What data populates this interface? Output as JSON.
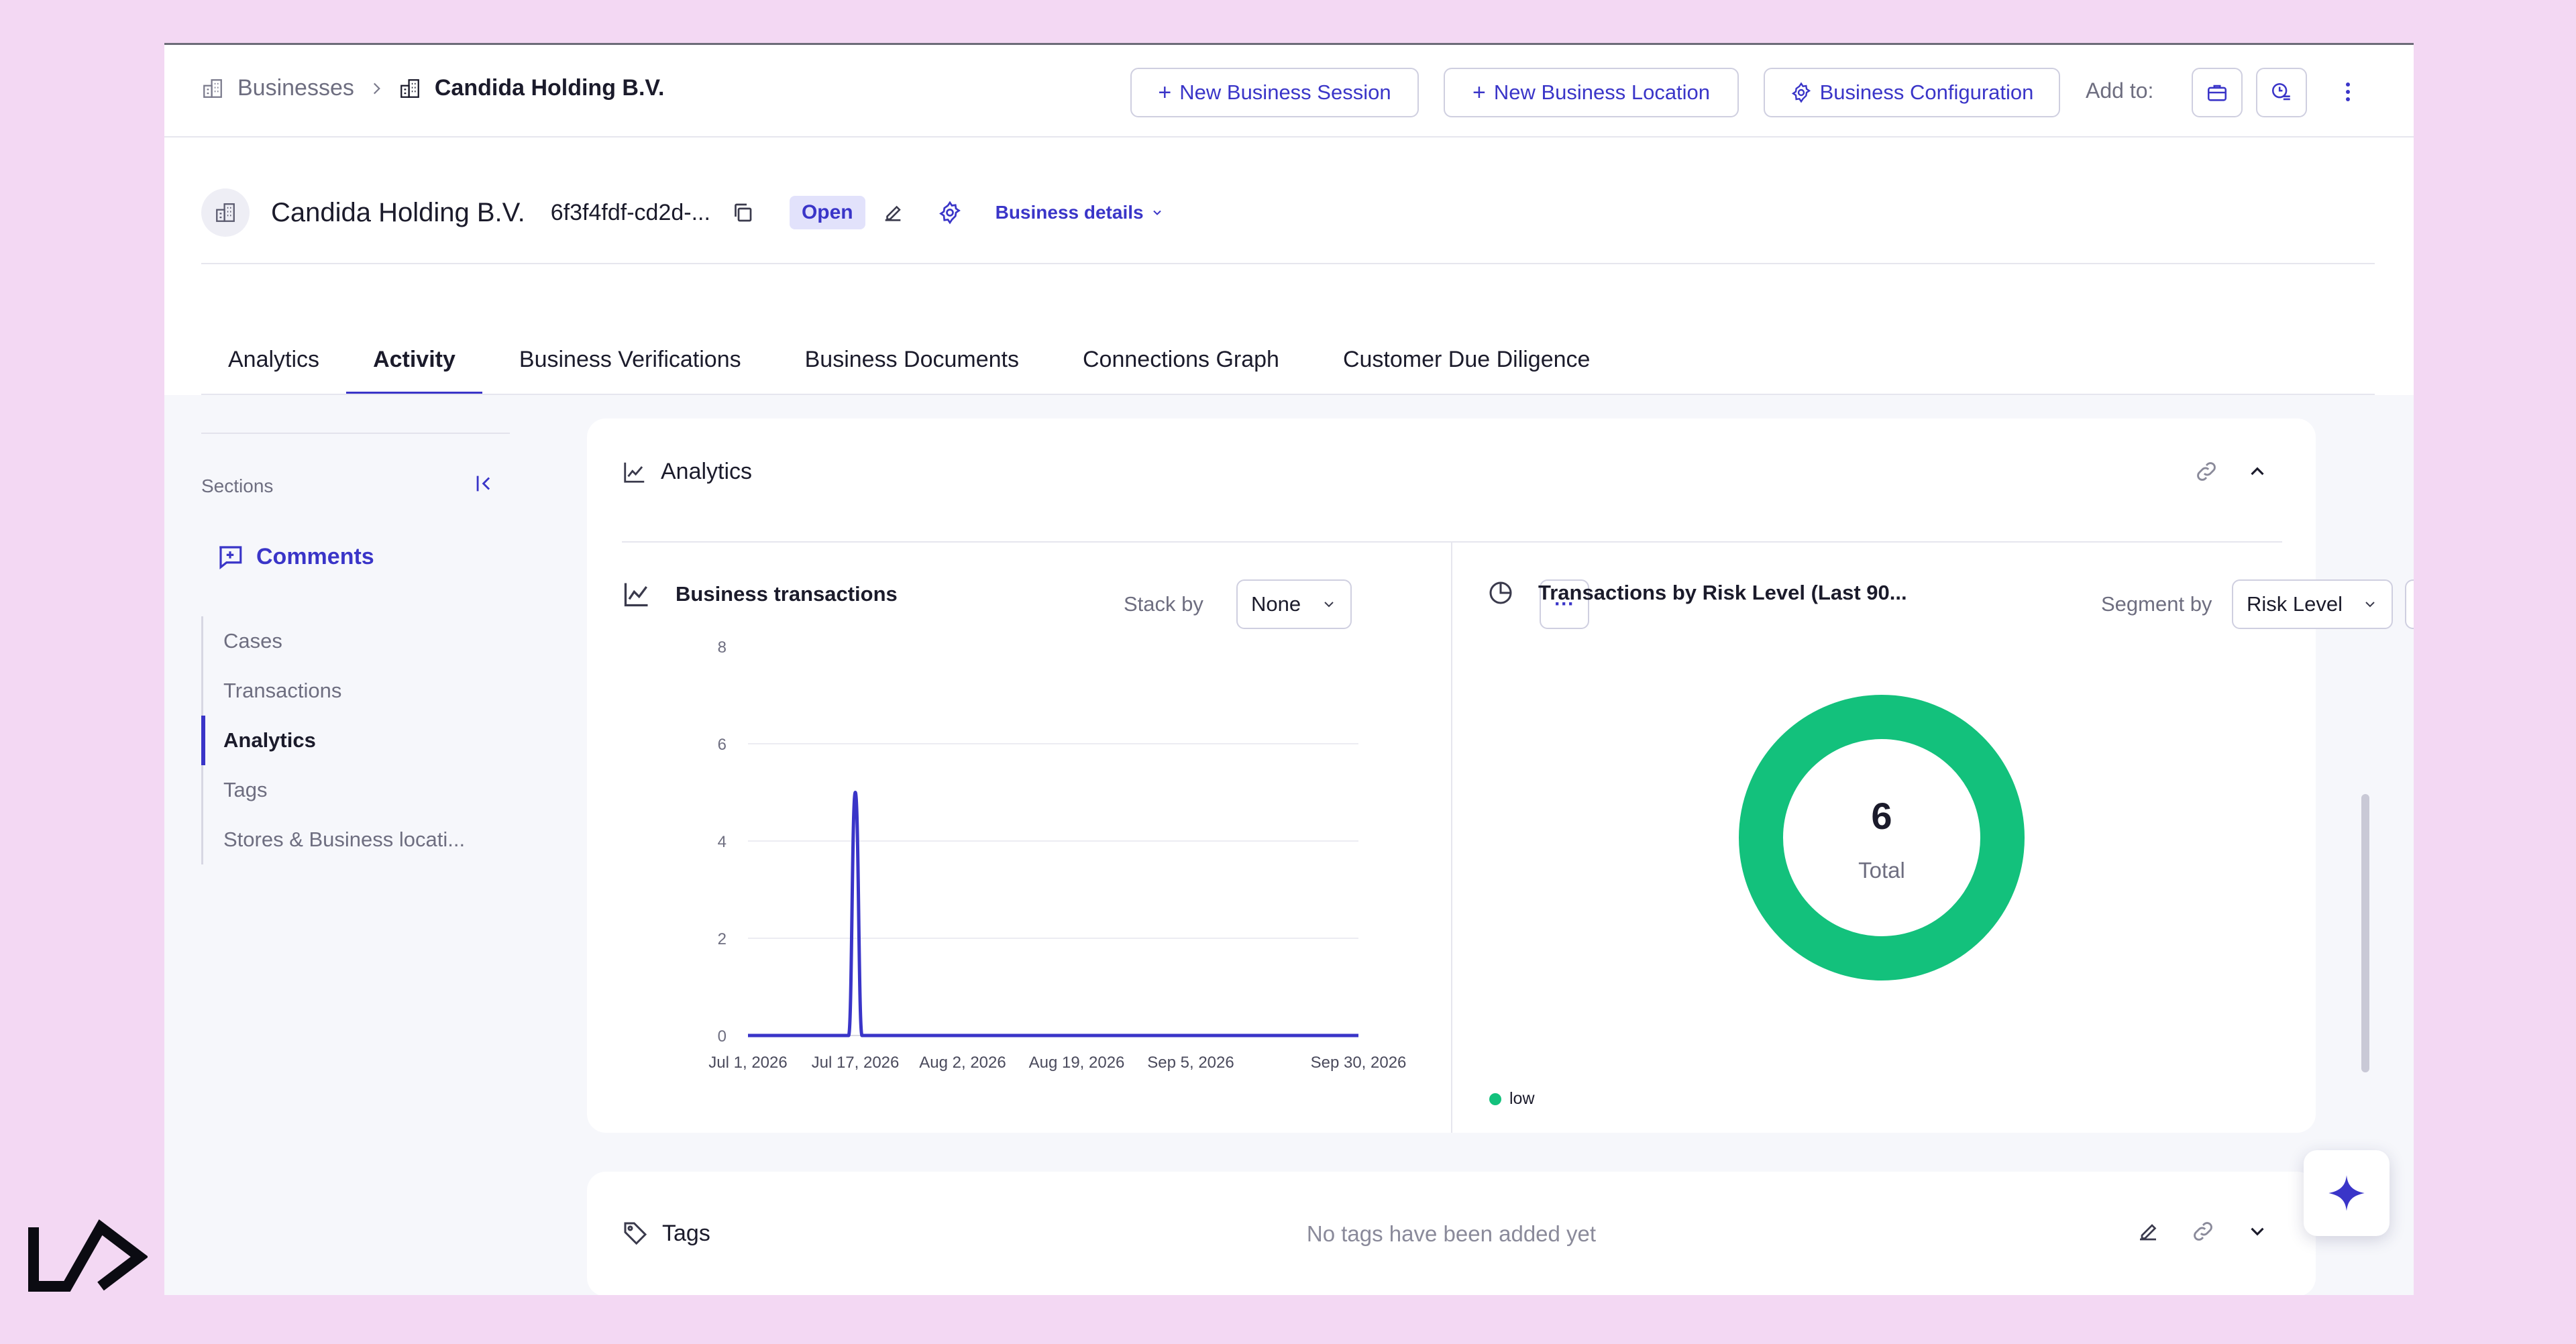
{
  "breadcrumb": {
    "root": "Businesses",
    "current": "Candida Holding B.V."
  },
  "header_actions": {
    "new_session": "New Business Session",
    "new_location": "New Business Location",
    "configuration": "Business Configuration",
    "add_to": "Add to:"
  },
  "entity": {
    "name": "Candida Holding B.V.",
    "id": "6f3f4fdf-cd2d-...",
    "status": "Open",
    "details_link": "Business details"
  },
  "tabs": [
    {
      "label": "Analytics"
    },
    {
      "label": "Activity"
    },
    {
      "label": "Business Verifications"
    },
    {
      "label": "Business Documents"
    },
    {
      "label": "Connections Graph"
    },
    {
      "label": "Customer Due Diligence"
    }
  ],
  "active_tab": "Activity",
  "sidebar": {
    "title": "Sections",
    "comments": "Comments",
    "items": [
      {
        "label": "Cases"
      },
      {
        "label": "Transactions"
      },
      {
        "label": "Analytics"
      },
      {
        "label": "Tags"
      },
      {
        "label": "Stores & Business locati..."
      }
    ],
    "active_item": "Analytics"
  },
  "analytics_card": {
    "title": "Analytics",
    "left_panel": {
      "title": "Business transactions",
      "stack_label": "Stack by",
      "stack_value": "None",
      "more": "···"
    },
    "right_panel": {
      "title": "Transactions by Risk Level (Last 90...",
      "segment_label": "Segment by",
      "segment_value": "Risk Level",
      "more": "···"
    }
  },
  "chart_data": [
    {
      "type": "line",
      "title": "Business transactions",
      "x_tick_labels": [
        "Jul 1, 2026",
        "Jul 17, 2026",
        "Aug 2, 2026",
        "Aug 19, 2026",
        "Sep 5, 2026",
        "Sep 30, 2026"
      ],
      "y_ticks": [
        0,
        2,
        4,
        6,
        8
      ],
      "ylim": [
        0,
        8
      ],
      "xlim": [
        "2026-07-01",
        "2026-09-30"
      ],
      "grid": true,
      "series": [
        {
          "color": "#3a35c8",
          "points": [
            {
              "x": "2026-07-01",
              "y": 0
            },
            {
              "x": "2026-07-16",
              "y": 0
            },
            {
              "x": "2026-07-17",
              "y": 5
            },
            {
              "x": "2026-07-18",
              "y": 0
            },
            {
              "x": "2026-09-30",
              "y": 0
            }
          ]
        }
      ]
    },
    {
      "type": "pie",
      "title": "Transactions by Risk Level (Last 90...",
      "center_value": "6",
      "center_label": "Total",
      "slices": [
        {
          "label": "low",
          "value": 6,
          "color": "#13c17c"
        }
      ],
      "legend": "bottom-left"
    }
  ],
  "tags_card": {
    "title": "Tags",
    "empty_text": "No tags have been added yet"
  },
  "colors": {
    "accent": "#3a35c8",
    "low_risk": "#13c17c",
    "page_background": "#f3d8f3"
  }
}
